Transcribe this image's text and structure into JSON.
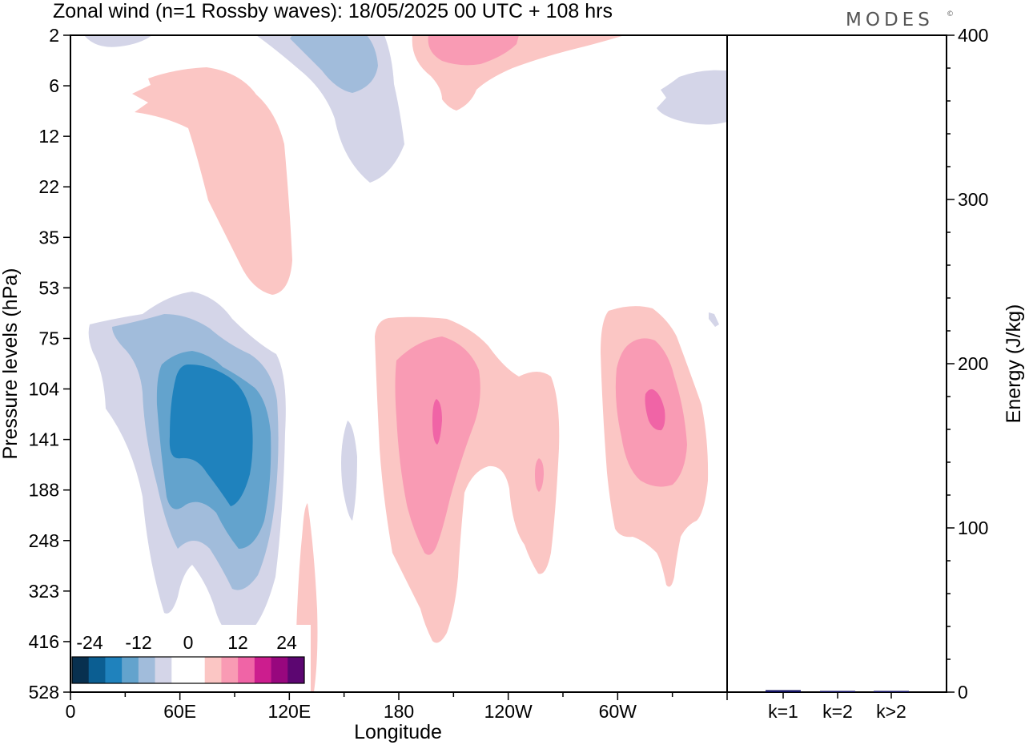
{
  "chart_data": [
    {
      "type": "heatmap",
      "title": "Zonal wind (n=1 Rossby waves):  18/05/2025  00 UTC  + 108 hrs",
      "xlabel": "Longitude",
      "ylabel": "Pressure levels (hPa)",
      "x_ticks": [
        "0",
        "60E",
        "120E",
        "180",
        "120W",
        "60W"
      ],
      "x_tick_degrees": [
        0,
        60,
        120,
        180,
        240,
        300
      ],
      "xlim": [
        0,
        360
      ],
      "y_ticks": [
        "2",
        "6",
        "12",
        "22",
        "35",
        "53",
        "75",
        "104",
        "141",
        "188",
        "248",
        "323",
        "416",
        "528"
      ],
      "colorbar": {
        "tick_labels": [
          "-24",
          "-12",
          "0",
          "12",
          "24"
        ],
        "colors": [
          "#08304f",
          "#0b5e92",
          "#1f82bd",
          "#63a3cd",
          "#a1bcdb",
          "#d4d5e8",
          "#ffffff",
          "#ffffff",
          "#fbc6c4",
          "#f99bb4",
          "#f064a6",
          "#cc1d8e",
          "#98077e",
          "#5c0671"
        ]
      },
      "features": [
        {
          "name": "easterly-upper-left",
          "sign": "negative",
          "min_level": 1
        },
        {
          "name": "easterly-upper-middle",
          "sign": "negative",
          "min_level": 2
        },
        {
          "name": "easterly-upper-right",
          "sign": "negative",
          "min_level": 1
        },
        {
          "name": "westerly-upper-left",
          "sign": "positive",
          "min_level": 1
        },
        {
          "name": "westerly-upper-center",
          "sign": "positive",
          "min_level": 2
        },
        {
          "name": "easterly-lower-left",
          "sign": "negative",
          "min_level": 4
        },
        {
          "name": "easterly-lower-thin",
          "sign": "negative",
          "min_level": 1
        },
        {
          "name": "westerly-lower-center",
          "sign": "positive",
          "min_level": 3
        },
        {
          "name": "westerly-lower-right",
          "sign": "positive",
          "min_level": 3
        },
        {
          "name": "westerly-bottom-strip",
          "sign": "positive",
          "min_level": 1
        }
      ]
    },
    {
      "type": "bar",
      "categories": [
        "k=1",
        "k=2",
        "k>2"
      ],
      "values": [
        1.2,
        0.3,
        0.6
      ],
      "ylabel": "Energy (J/kg)",
      "ylim": [
        0,
        400
      ],
      "y_ticks": [
        0,
        100,
        200,
        300,
        400
      ],
      "bar_color": "#101060"
    }
  ],
  "brand": {
    "logo_text": "MODES",
    "logo_mark": "©"
  }
}
